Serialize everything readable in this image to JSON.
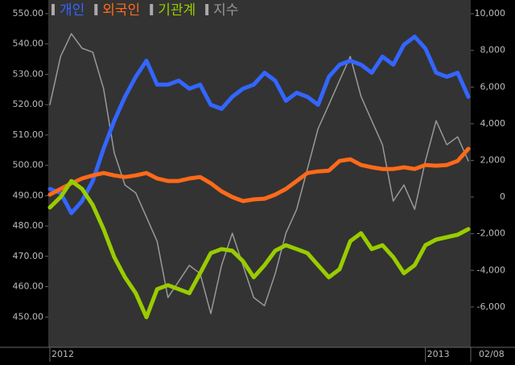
{
  "chart_data": {
    "type": "line",
    "categories": [
      "2012",
      null,
      null,
      null,
      null,
      null,
      null,
      null,
      null,
      null,
      null,
      null,
      null,
      null,
      null,
      null,
      null,
      null,
      null,
      null,
      null,
      null,
      null,
      null,
      null,
      null,
      null,
      null,
      null,
      null,
      null,
      null,
      null,
      null,
      null,
      "2013",
      null,
      null,
      null,
      "02/08"
    ],
    "series": [
      {
        "name": "개인",
        "color": "#3366ff",
        "axis": "y2",
        "values": [
          440,
          220,
          -880,
          -220,
          875,
          2630,
          4160,
          5470,
          6560,
          7440,
          6130,
          6130,
          6350,
          5910,
          6130,
          5030,
          4810,
          5470,
          5910,
          6130,
          6780,
          6350,
          5250,
          5690,
          5470,
          5030,
          6560,
          7220,
          7440,
          7220,
          6780,
          7660,
          7220,
          8310,
          8750,
          8100,
          6780,
          6560,
          6780,
          5470
        ]
      },
      {
        "name": "외국인",
        "color": "#ff6a1a",
        "axis": "y2",
        "values": [
          130,
          440,
          750,
          1010,
          1180,
          1310,
          1180,
          1090,
          1180,
          1310,
          1010,
          875,
          875,
          1010,
          1090,
          750,
          310,
          0,
          -220,
          -130,
          -90,
          130,
          440,
          875,
          1310,
          1400,
          1440,
          1970,
          2060,
          1750,
          1620,
          1530,
          1530,
          1620,
          1530,
          1750,
          1710,
          1750,
          1970,
          2630
        ]
      },
      {
        "name": "기관계",
        "color": "#99cc00",
        "axis": "y2",
        "values": [
          -570,
          0,
          875,
          440,
          -440,
          -1750,
          -3280,
          -4380,
          -5250,
          -6560,
          -5030,
          -4810,
          -5030,
          -5250,
          -4160,
          -3060,
          -2840,
          -2930,
          -3500,
          -4380,
          -3720,
          -2930,
          -2630,
          -2840,
          -3060,
          -3720,
          -4380,
          -3940,
          -2410,
          -1970,
          -2840,
          -2630,
          -3280,
          -4160,
          -3720,
          -2630,
          -2320,
          -2190,
          -2060,
          -1750
        ]
      },
      {
        "name": "지수",
        "color": "#999999",
        "values": [
          520.0,
          535.9,
          543.4,
          538.6,
          537.3,
          525.3,
          504.1,
          493.5,
          490.9,
          482.9,
          474.9,
          456.4,
          461.7,
          467.0,
          464.3,
          451.1,
          467.0,
          477.6,
          467.0,
          456.4,
          453.7,
          464.3,
          477.6,
          485.5,
          498.8,
          512.1,
          520.0,
          528.0,
          535.9,
          522.7,
          514.7,
          506.8,
          488.2,
          493.5,
          485.5,
          501.5,
          514.7,
          506.8,
          509.4,
          501.5
        ]
      }
    ],
    "ylim": [
      440,
      554.5
    ],
    "yticks": [
      {
        "value": 550,
        "label": "550.00"
      },
      {
        "value": 540,
        "label": "540.00"
      },
      {
        "value": 530,
        "label": "530.00"
      },
      {
        "value": 520,
        "label": "520.00"
      },
      {
        "value": 510,
        "label": "510.00"
      },
      {
        "value": 500,
        "label": "500.00"
      },
      {
        "value": 490,
        "label": "490.00"
      },
      {
        "value": 480,
        "label": "480.00"
      },
      {
        "value": 470,
        "label": "470.00"
      },
      {
        "value": 460,
        "label": "460.00"
      },
      {
        "value": 450,
        "label": "450.00"
      }
    ],
    "y2lim": [
      -8200,
      10750
    ],
    "y2ticks": [
      {
        "value": 10000,
        "label": "10,000"
      },
      {
        "value": 8000,
        "label": "8,000"
      },
      {
        "value": 6000,
        "label": "6,000"
      },
      {
        "value": 4000,
        "label": "4,000"
      },
      {
        "value": 2000,
        "label": "2,000"
      },
      0,
      {
        "value": -2000,
        "label": "-2,000"
      },
      {
        "value": -4000,
        "label": "-4,000"
      },
      {
        "value": -6000,
        "label": "-6,000"
      }
    ],
    "grid": false
  }
}
